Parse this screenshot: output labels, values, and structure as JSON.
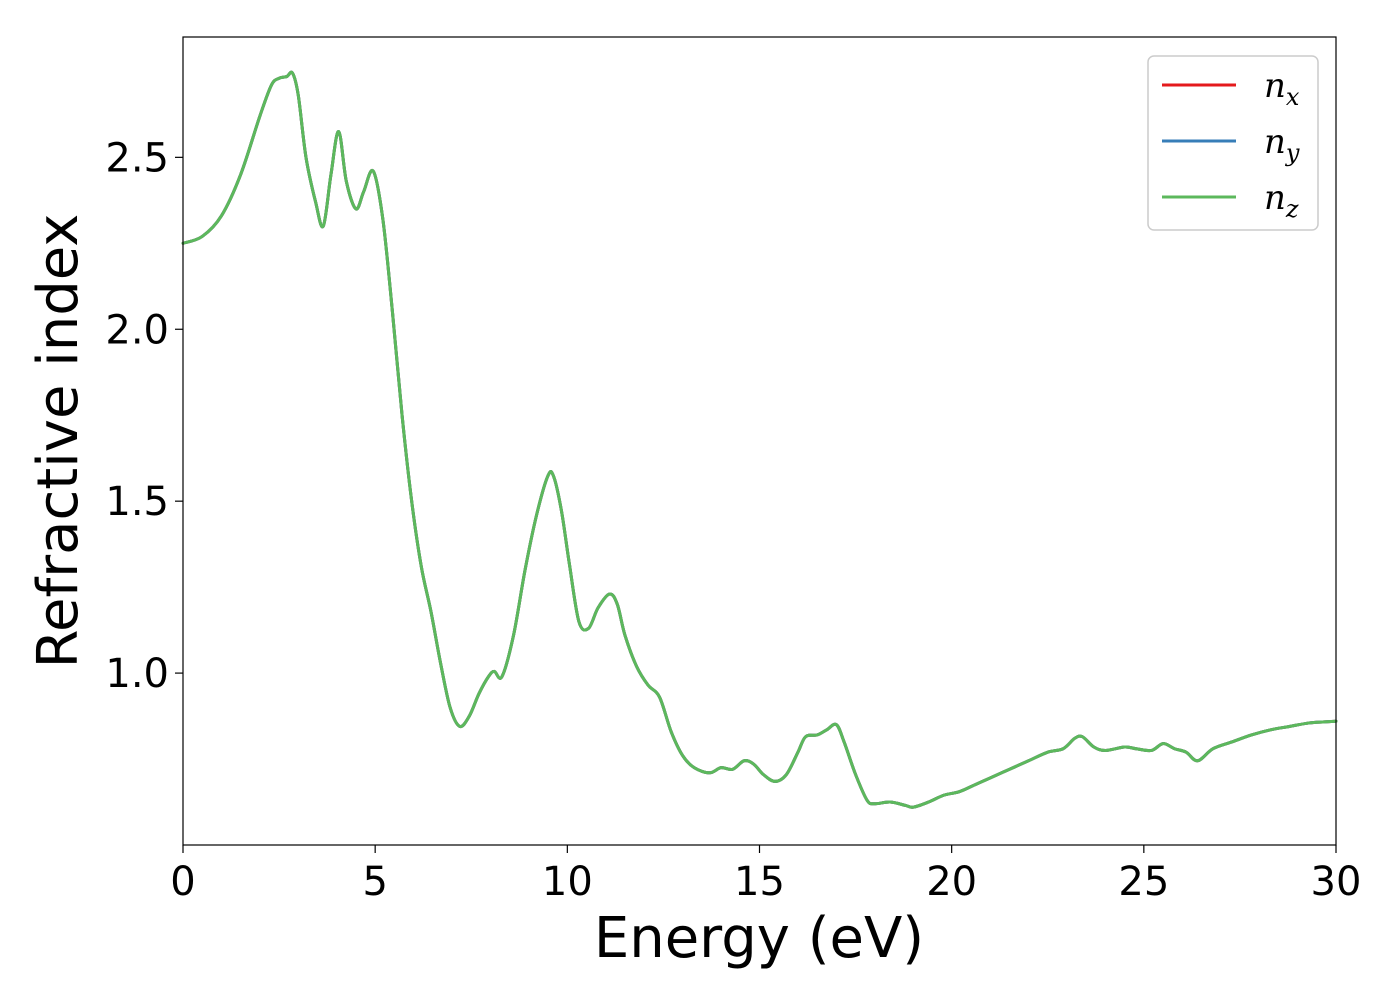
{
  "chart_data": {
    "type": "line",
    "xlabel": "Energy (eV)",
    "ylabel": "Refractive index",
    "xlim": [
      0,
      30
    ],
    "ylim": [
      0.5,
      2.85
    ],
    "xticks": [
      "0",
      "5",
      "10",
      "15",
      "20",
      "25",
      "30"
    ],
    "yticks": [
      "1.0",
      "1.5",
      "2.0",
      "2.5"
    ],
    "grid": false,
    "legend_position": "top-right",
    "x": [
      0,
      0.5,
      1,
      1.5,
      2,
      2.3,
      2.5,
      2.7,
      2.85,
      3.0,
      3.2,
      3.45,
      3.65,
      3.85,
      4.05,
      4.25,
      4.5,
      4.7,
      4.95,
      5.2,
      5.45,
      5.7,
      5.95,
      6.2,
      6.45,
      6.7,
      6.95,
      7.2,
      7.45,
      7.7,
      7.95,
      8.1,
      8.3,
      8.6,
      8.9,
      9.2,
      9.5,
      9.65,
      9.85,
      10.05,
      10.3,
      10.55,
      10.8,
      11.1,
      11.3,
      11.5,
      11.8,
      12.1,
      12.4,
      12.7,
      13.0,
      13.3,
      13.7,
      14.0,
      14.3,
      14.6,
      14.85,
      15.1,
      15.4,
      15.7,
      16.0,
      16.2,
      16.5,
      16.75,
      17.0,
      17.2,
      17.5,
      17.8,
      18.0,
      18.4,
      18.8,
      19.0,
      19.4,
      19.8,
      20.2,
      20.6,
      21.0,
      21.5,
      22.0,
      22.5,
      22.9,
      23.2,
      23.4,
      23.7,
      24.0,
      24.5,
      24.8,
      25.2,
      25.5,
      25.8,
      26.1,
      26.4,
      26.8,
      27.3,
      27.8,
      28.3,
      28.8,
      29.3,
      29.7,
      30
    ],
    "series": [
      {
        "name": "n_x",
        "label_base": "n",
        "label_sub": "x",
        "color": "#e41a1c",
        "y": [
          2.25,
          2.27,
          2.33,
          2.45,
          2.62,
          2.71,
          2.73,
          2.735,
          2.745,
          2.68,
          2.5,
          2.37,
          2.3,
          2.45,
          2.575,
          2.43,
          2.35,
          2.4,
          2.46,
          2.32,
          2.05,
          1.75,
          1.5,
          1.31,
          1.18,
          1.03,
          0.9,
          0.845,
          0.875,
          0.94,
          0.99,
          1.005,
          0.99,
          1.11,
          1.3,
          1.46,
          1.575,
          1.57,
          1.47,
          1.32,
          1.15,
          1.13,
          1.19,
          1.23,
          1.2,
          1.11,
          1.02,
          0.965,
          0.93,
          0.83,
          0.76,
          0.725,
          0.71,
          0.725,
          0.72,
          0.745,
          0.735,
          0.705,
          0.685,
          0.705,
          0.77,
          0.815,
          0.82,
          0.835,
          0.85,
          0.8,
          0.705,
          0.63,
          0.62,
          0.625,
          0.615,
          0.61,
          0.625,
          0.645,
          0.655,
          0.675,
          0.695,
          0.72,
          0.745,
          0.77,
          0.78,
          0.81,
          0.815,
          0.785,
          0.775,
          0.785,
          0.78,
          0.775,
          0.795,
          0.78,
          0.77,
          0.745,
          0.78,
          0.8,
          0.82,
          0.835,
          0.845,
          0.855,
          0.858,
          0.86
        ]
      },
      {
        "name": "n_y",
        "label_base": "n",
        "label_sub": "y",
        "color": "#377eb8",
        "y": [
          2.25,
          2.27,
          2.33,
          2.45,
          2.62,
          2.71,
          2.73,
          2.735,
          2.745,
          2.68,
          2.5,
          2.37,
          2.3,
          2.45,
          2.575,
          2.43,
          2.35,
          2.4,
          2.46,
          2.32,
          2.05,
          1.75,
          1.5,
          1.31,
          1.18,
          1.03,
          0.9,
          0.845,
          0.875,
          0.94,
          0.99,
          1.005,
          0.99,
          1.11,
          1.3,
          1.46,
          1.575,
          1.57,
          1.47,
          1.32,
          1.15,
          1.13,
          1.19,
          1.23,
          1.2,
          1.11,
          1.02,
          0.965,
          0.93,
          0.83,
          0.76,
          0.725,
          0.71,
          0.725,
          0.72,
          0.745,
          0.735,
          0.705,
          0.685,
          0.705,
          0.77,
          0.815,
          0.82,
          0.835,
          0.85,
          0.8,
          0.705,
          0.63,
          0.62,
          0.625,
          0.615,
          0.61,
          0.625,
          0.645,
          0.655,
          0.675,
          0.695,
          0.72,
          0.745,
          0.77,
          0.78,
          0.81,
          0.815,
          0.785,
          0.775,
          0.785,
          0.78,
          0.775,
          0.795,
          0.78,
          0.77,
          0.745,
          0.78,
          0.8,
          0.82,
          0.835,
          0.845,
          0.855,
          0.858,
          0.86
        ]
      },
      {
        "name": "n_z",
        "label_base": "n",
        "label_sub": "z",
        "color": "#5cb85c",
        "y": [
          2.25,
          2.27,
          2.33,
          2.45,
          2.62,
          2.71,
          2.73,
          2.735,
          2.745,
          2.68,
          2.5,
          2.37,
          2.3,
          2.45,
          2.575,
          2.43,
          2.35,
          2.4,
          2.46,
          2.32,
          2.05,
          1.75,
          1.5,
          1.31,
          1.18,
          1.03,
          0.9,
          0.845,
          0.875,
          0.94,
          0.99,
          1.005,
          0.99,
          1.11,
          1.3,
          1.46,
          1.575,
          1.57,
          1.47,
          1.32,
          1.15,
          1.13,
          1.19,
          1.23,
          1.2,
          1.11,
          1.02,
          0.965,
          0.93,
          0.83,
          0.76,
          0.725,
          0.71,
          0.725,
          0.72,
          0.745,
          0.735,
          0.705,
          0.685,
          0.705,
          0.77,
          0.815,
          0.82,
          0.835,
          0.85,
          0.8,
          0.705,
          0.63,
          0.62,
          0.625,
          0.615,
          0.61,
          0.625,
          0.645,
          0.655,
          0.675,
          0.695,
          0.72,
          0.745,
          0.77,
          0.78,
          0.81,
          0.815,
          0.785,
          0.775,
          0.785,
          0.78,
          0.775,
          0.795,
          0.78,
          0.77,
          0.745,
          0.78,
          0.8,
          0.82,
          0.835,
          0.845,
          0.855,
          0.858,
          0.86
        ]
      }
    ]
  }
}
